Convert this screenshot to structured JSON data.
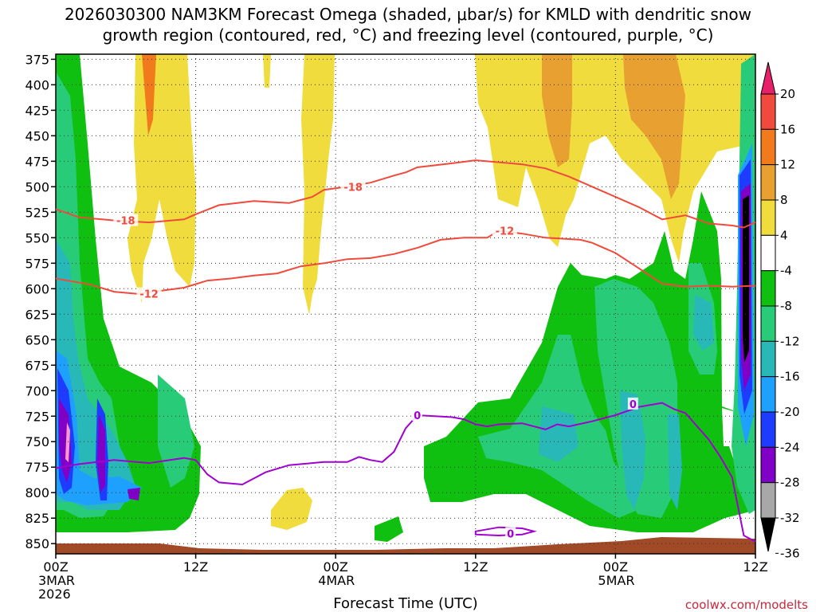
{
  "chart_data": {
    "type": "heatmap",
    "title_line1": "2026030300 NAM3KM Forecast Omega (shaded, μbar/s) for KMLD with dendritic snow",
    "title_line2": "growth region (contoured, red, °C) and freezing level (contoured, purple, °C)",
    "xlabel": "Forecast Time (UTC)",
    "x_range_hours": [
      0,
      60
    ],
    "y_range_hPa": [
      370,
      860
    ],
    "y_ticks": [
      375,
      400,
      425,
      450,
      475,
      500,
      525,
      550,
      575,
      600,
      625,
      650,
      675,
      700,
      725,
      750,
      775,
      800,
      825,
      850
    ],
    "x_ticks": [
      {
        "hour": 0,
        "line1": "00Z",
        "line2": "3MAR",
        "line3": "2026"
      },
      {
        "hour": 12,
        "line1": "12Z",
        "line2": "",
        "line3": ""
      },
      {
        "hour": 24,
        "line1": "00Z",
        "line2": "4MAR",
        "line3": ""
      },
      {
        "hour": 36,
        "line1": "12Z",
        "line2": "",
        "line3": ""
      },
      {
        "hour": 48,
        "line1": "00Z",
        "line2": "5MAR",
        "line3": ""
      },
      {
        "hour": 60,
        "line1": "12Z",
        "line2": "",
        "line3": ""
      }
    ],
    "colorbar": {
      "labels": [
        "20",
        "16",
        "12",
        "8",
        "4",
        "-4",
        "-8",
        "-12",
        "-16",
        "-20",
        "-24",
        "-28",
        "-32",
        "-36"
      ],
      "colors": [
        "#e8206a",
        "#f04a3c",
        "#f07a1c",
        "#e8a030",
        "#f0dc3c",
        "#ffffff",
        "#10c010",
        "#28cc78",
        "#28b8b8",
        "#1ea0ff",
        "#1e3cff",
        "#8000c8",
        "#a8a8a8",
        "#000000"
      ]
    },
    "series": [
      {
        "name": "-18",
        "color": "#f04a3c",
        "points": [
          [
            0,
            522
          ],
          [
            2,
            530
          ],
          [
            5,
            533
          ],
          [
            8,
            535
          ],
          [
            11,
            532
          ],
          [
            12,
            527
          ],
          [
            14,
            518
          ],
          [
            17,
            514
          ],
          [
            20,
            516
          ],
          [
            22,
            510
          ],
          [
            23,
            503
          ],
          [
            25,
            500
          ],
          [
            27,
            496
          ],
          [
            29,
            489
          ],
          [
            30,
            486
          ],
          [
            31,
            481
          ],
          [
            34,
            477
          ],
          [
            36,
            474
          ],
          [
            38,
            476
          ],
          [
            40,
            478
          ],
          [
            42,
            482
          ],
          [
            44,
            490
          ],
          [
            46,
            500
          ],
          [
            48,
            510
          ],
          [
            50,
            520
          ],
          [
            52,
            532
          ],
          [
            54,
            528
          ],
          [
            56,
            536
          ],
          [
            58,
            538
          ],
          [
            59,
            540
          ],
          [
            60,
            535
          ]
        ]
      },
      {
        "name": "-12",
        "color": "#f04a3c",
        "points": [
          [
            0,
            590
          ],
          [
            3,
            596
          ],
          [
            5,
            603
          ],
          [
            7,
            605
          ],
          [
            9,
            602
          ],
          [
            11,
            599
          ],
          [
            13,
            592
          ],
          [
            15,
            590
          ],
          [
            17,
            587
          ],
          [
            19,
            585
          ],
          [
            21,
            578
          ],
          [
            23,
            575
          ],
          [
            25,
            571
          ],
          [
            27,
            570
          ],
          [
            29,
            566
          ],
          [
            31,
            560
          ],
          [
            33,
            552
          ],
          [
            35,
            550
          ],
          [
            37,
            550
          ],
          [
            38,
            543
          ],
          [
            40,
            546
          ],
          [
            42,
            550
          ],
          [
            45,
            552
          ],
          [
            46,
            555
          ],
          [
            48,
            565
          ],
          [
            50,
            580
          ],
          [
            52,
            595
          ],
          [
            54,
            598
          ],
          [
            56,
            597
          ],
          [
            58,
            598
          ],
          [
            60,
            597
          ]
        ]
      },
      {
        "name": "0",
        "color": "#a000d0",
        "points": [
          [
            0,
            776
          ],
          [
            2,
            772
          ],
          [
            5,
            768
          ],
          [
            8,
            771
          ],
          [
            11,
            766
          ],
          [
            12,
            768
          ],
          [
            13,
            782
          ],
          [
            14,
            790
          ],
          [
            16,
            792
          ],
          [
            17,
            786
          ],
          [
            18,
            780
          ],
          [
            20,
            773
          ],
          [
            23,
            770
          ],
          [
            25,
            770
          ],
          [
            26,
            765
          ],
          [
            27,
            768
          ],
          [
            28,
            770
          ],
          [
            29,
            760
          ],
          [
            30,
            737
          ],
          [
            31,
            724
          ],
          [
            34,
            726
          ],
          [
            35,
            728
          ],
          [
            36,
            733
          ],
          [
            37,
            735
          ],
          [
            38,
            733
          ],
          [
            40,
            732
          ],
          [
            42,
            738
          ],
          [
            43,
            733
          ],
          [
            44,
            735
          ],
          [
            46,
            730
          ],
          [
            48,
            724
          ],
          [
            50,
            716
          ],
          [
            52,
            712
          ],
          [
            53,
            718
          ],
          [
            54,
            722
          ],
          [
            56,
            748
          ],
          [
            57,
            765
          ],
          [
            58,
            785
          ],
          [
            59,
            842
          ],
          [
            60,
            848
          ]
        ]
      },
      {
        "name": "0",
        "color": "#a000d0",
        "closed": true,
        "points": [
          [
            36,
            838
          ],
          [
            38,
            834
          ],
          [
            40,
            835
          ],
          [
            41,
            838
          ],
          [
            40,
            841
          ],
          [
            38,
            842
          ],
          [
            36,
            841
          ]
        ]
      }
    ],
    "contour_labels": [
      {
        "text": "-18",
        "hour": 6,
        "hPa": 533,
        "color": "#f04a3c"
      },
      {
        "text": "-18",
        "hour": 25.5,
        "hPa": 500,
        "color": "#f04a3c"
      },
      {
        "text": "-12",
        "hour": 8,
        "hPa": 605,
        "color": "#f04a3c"
      },
      {
        "text": "-12",
        "hour": 38.5,
        "hPa": 543,
        "color": "#f04a3c"
      },
      {
        "text": "0",
        "hour": 31,
        "hPa": 724,
        "color": "#a000d0"
      },
      {
        "text": "0",
        "hour": 49.5,
        "hPa": 713,
        "color": "#a000d0"
      },
      {
        "text": "0",
        "hour": 39,
        "hPa": 840,
        "color": "#a000d0"
      }
    ]
  },
  "credit": "coolwx.com/modelts"
}
